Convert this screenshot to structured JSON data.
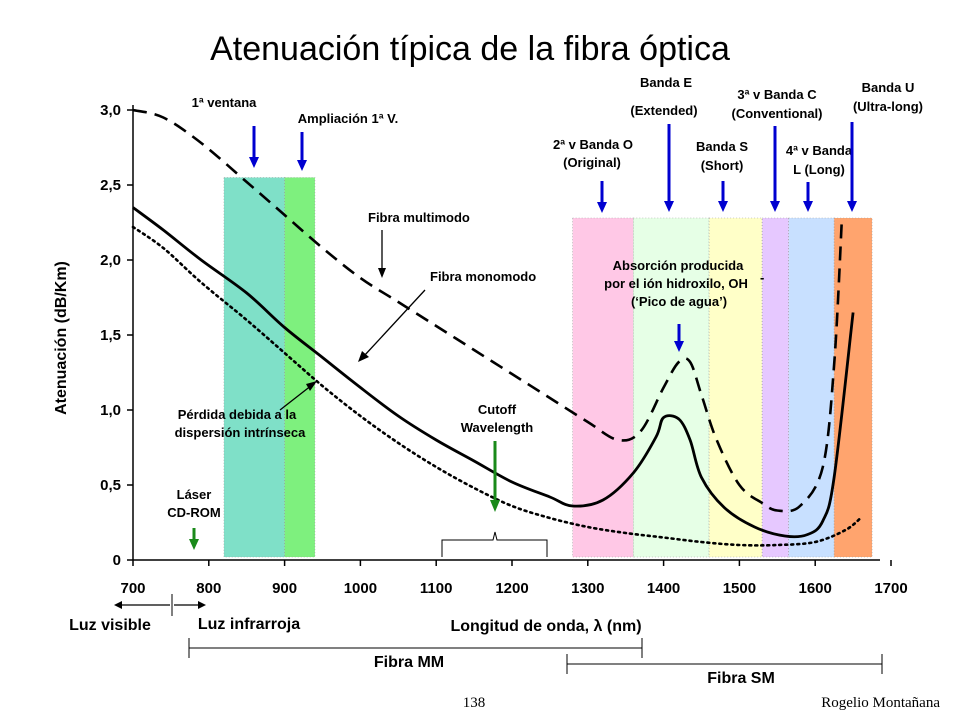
{
  "chart_data": {
    "type": "line",
    "title": "Atenuación típica de la fibra óptica",
    "xlabel": "Longitud de onda, λ (nm)",
    "ylabel": "Atenuación (dB/Km)",
    "xlim": [
      700,
      1700
    ],
    "ylim": [
      0,
      3.0
    ],
    "x_ticks": [
      "700",
      "800",
      "900",
      "1000",
      "1100",
      "1200",
      "1300",
      "1400",
      "1500",
      "1600",
      "1700"
    ],
    "y_ticks": [
      "0",
      "0,5",
      "1,0",
      "1,5",
      "2,0",
      "2,5",
      "3,0"
    ],
    "grid": false,
    "bands": [
      {
        "from": 820,
        "to": 900,
        "color": "#7fe0c8"
      },
      {
        "from": 900,
        "to": 940,
        "color": "#7ef07e"
      },
      {
        "from": 1280,
        "to": 1360,
        "color": "#ffc8e6"
      },
      {
        "from": 1360,
        "to": 1460,
        "color": "#e6ffe6"
      },
      {
        "from": 1460,
        "to": 1530,
        "color": "#ffffc8"
      },
      {
        "from": 1530,
        "to": 1565,
        "color": "#e6c8ff"
      },
      {
        "from": 1565,
        "to": 1625,
        "color": "#c8e0ff"
      },
      {
        "from": 1625,
        "to": 1675,
        "color": "#ffa46e"
      }
    ],
    "series": [
      {
        "style": "dashed",
        "x": [
          700,
          740,
          790,
          850,
          900,
          950,
          1000,
          1050,
          1100,
          1150,
          1200,
          1250,
          1300,
          1340,
          1370,
          1400,
          1420,
          1435,
          1450,
          1470,
          1500,
          1530,
          1550,
          1580,
          1610,
          1625,
          1635
        ],
        "y": [
          3.0,
          2.95,
          2.78,
          2.52,
          2.3,
          2.08,
          1.88,
          1.72,
          1.56,
          1.4,
          1.24,
          1.08,
          0.92,
          0.8,
          0.86,
          1.15,
          1.32,
          1.32,
          1.1,
          0.8,
          0.5,
          0.38,
          0.33,
          0.36,
          0.62,
          1.3,
          2.25
        ]
      },
      {
        "style": "solid",
        "x": [
          700,
          740,
          790,
          850,
          900,
          950,
          1000,
          1050,
          1100,
          1150,
          1200,
          1250,
          1280,
          1320,
          1360,
          1390,
          1400,
          1420,
          1435,
          1450,
          1480,
          1520,
          1560,
          1590,
          1610,
          1625,
          1650
        ],
        "y": [
          2.35,
          2.2,
          2.0,
          1.78,
          1.55,
          1.35,
          1.15,
          0.96,
          0.8,
          0.66,
          0.52,
          0.42,
          0.36,
          0.4,
          0.58,
          0.82,
          0.95,
          0.94,
          0.8,
          0.55,
          0.35,
          0.22,
          0.16,
          0.17,
          0.26,
          0.55,
          1.65
        ]
      },
      {
        "style": "dotted",
        "x": [
          700,
          740,
          790,
          850,
          900,
          950,
          1000,
          1050,
          1100,
          1150,
          1200,
          1250,
          1300,
          1350,
          1400,
          1450,
          1500,
          1550,
          1600,
          1640,
          1660
        ],
        "y": [
          2.22,
          2.08,
          1.85,
          1.6,
          1.38,
          1.16,
          0.96,
          0.78,
          0.62,
          0.48,
          0.36,
          0.28,
          0.22,
          0.18,
          0.15,
          0.12,
          0.1,
          0.1,
          0.12,
          0.2,
          0.28
        ]
      }
    ],
    "annotations": [
      {
        "text": "Fibra multimodo"
      },
      {
        "text": "Fibra monomodo"
      },
      {
        "lines": [
          "Pérdida debida a la",
          "dispersión intrínseca"
        ]
      },
      {
        "lines": [
          "Absorción producida",
          "por el ión hidroxilo, OH",
          "(‘Pico de agua’)"
        ],
        "superscript": "-"
      },
      {
        "lines": [
          "Cutoff",
          "Wavelength"
        ]
      },
      {
        "lines": [
          "Láser",
          "CD-ROM"
        ]
      }
    ],
    "band_labels": [
      {
        "lines": [
          "1ª ventana"
        ]
      },
      {
        "lines": [
          "Ampliación 1ª V."
        ]
      },
      {
        "lines": [
          "2ª v Banda O",
          "(Original)"
        ]
      },
      {
        "lines": [
          "Banda E",
          "(Extended)"
        ]
      },
      {
        "lines": [
          "Banda S",
          "(Short)"
        ]
      },
      {
        "lines": [
          "3ª v Banda C",
          "(Conventional)"
        ]
      },
      {
        "lines": [
          "4ª v Banda",
          "L (Long)"
        ]
      },
      {
        "lines": [
          "Banda U",
          "(Ultra-long)"
        ]
      }
    ],
    "bottom_labels": {
      "visible": "Luz visible",
      "infrared": "Luz infrarroja",
      "fiber_mm": "Fibra MM",
      "fiber_sm": "Fibra SM"
    },
    "footer": {
      "page": "138",
      "author": "Rogelio Montañana"
    }
  }
}
